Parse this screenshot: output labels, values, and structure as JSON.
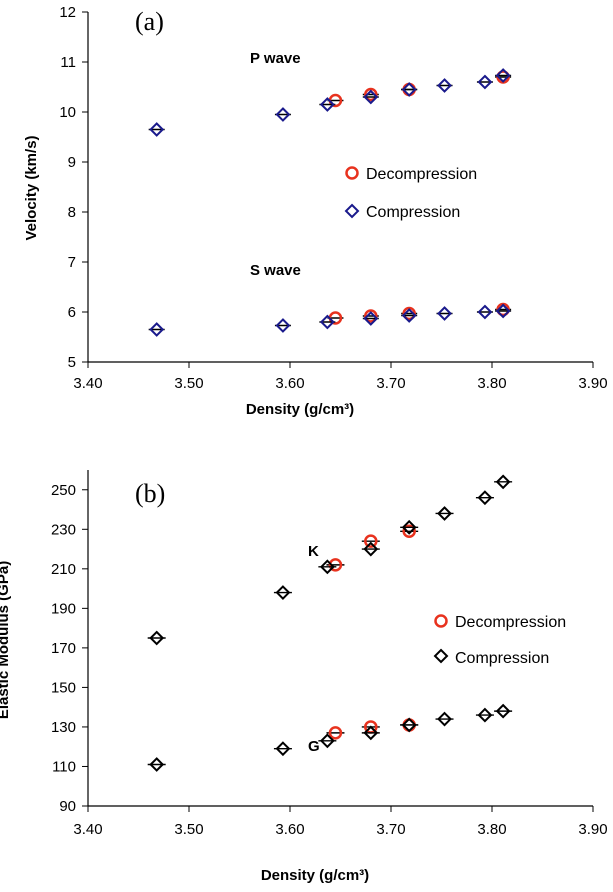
{
  "chart_data": [
    {
      "type": "scatter",
      "panel": "(a)",
      "xlabel": "Density (g/cm³)",
      "ylabel": "Velocity (km/s)",
      "xlim": [
        3.4,
        3.9
      ],
      "ylim": [
        5,
        12
      ],
      "x_ticks": [
        "3.40",
        "3.50",
        "3.60",
        "3.70",
        "3.80",
        "3.90"
      ],
      "y_ticks": [
        "5",
        "6",
        "7",
        "8",
        "9",
        "10",
        "11",
        "12"
      ],
      "grid": false,
      "legend_position": "right-middle",
      "annotations": [
        {
          "text": "P wave",
          "x": 3.675,
          "y": 10.95
        },
        {
          "text": "S wave",
          "x": 3.675,
          "y": 7.0
        }
      ],
      "series": [
        {
          "name": "Decompression",
          "marker": "circle",
          "color": "#e8321e",
          "x": [
            3.645,
            3.68,
            3.718,
            3.811
          ],
          "y": [
            10.23,
            10.35,
            10.45,
            10.7
          ]
        },
        {
          "name": "Compression",
          "marker": "diamond",
          "color": "#1a1a8c",
          "x": [
            3.468,
            3.593,
            3.637,
            3.68,
            3.718,
            3.753,
            3.793,
            3.811
          ],
          "y": [
            9.65,
            9.95,
            10.15,
            10.3,
            10.45,
            10.53,
            10.6,
            10.73
          ]
        },
        {
          "name": "Decompression",
          "marker": "circle",
          "color": "#e8321e",
          "x": [
            3.645,
            3.68,
            3.718,
            3.811
          ],
          "y": [
            5.88,
            5.92,
            5.97,
            6.05
          ]
        },
        {
          "name": "Compression",
          "marker": "diamond",
          "color": "#1a1a8c",
          "x": [
            3.468,
            3.593,
            3.637,
            3.68,
            3.718,
            3.753,
            3.793,
            3.811
          ],
          "y": [
            5.65,
            5.73,
            5.8,
            5.87,
            5.93,
            5.97,
            6.0,
            6.02
          ]
        }
      ]
    },
    {
      "type": "scatter",
      "panel": "(b)",
      "xlabel": "Density (g/cm³)",
      "ylabel": "Elastic Modulus (GPa)",
      "xlim": [
        3.4,
        3.9
      ],
      "ylim": [
        90,
        260
      ],
      "x_ticks": [
        "3.40",
        "3.50",
        "3.60",
        "3.70",
        "3.80",
        "3.90"
      ],
      "y_ticks": [
        "90",
        "110",
        "130",
        "150",
        "170",
        "190",
        "210",
        "230",
        "250"
      ],
      "grid": false,
      "legend_position": "right-middle",
      "annotations": [
        {
          "text": "K",
          "x": 3.665,
          "y": 237
        },
        {
          "text": "G",
          "x": 3.665,
          "y": 137
        }
      ],
      "series": [
        {
          "name": "Decompression",
          "marker": "circle",
          "color": "#e8321e",
          "x": [
            3.645,
            3.68,
            3.718
          ],
          "y": [
            212,
            224,
            229
          ]
        },
        {
          "name": "Compression",
          "marker": "diamond",
          "color": "#000000",
          "x": [
            3.468,
            3.593,
            3.637,
            3.68,
            3.718,
            3.753,
            3.793,
            3.811
          ],
          "y": [
            175,
            198,
            211,
            220,
            231,
            238,
            246,
            254
          ]
        },
        {
          "name": "Decompression",
          "marker": "circle",
          "color": "#e8321e",
          "x": [
            3.645,
            3.68,
            3.718
          ],
          "y": [
            127,
            130,
            131
          ]
        },
        {
          "name": "Compression",
          "marker": "diamond",
          "color": "#000000",
          "x": [
            3.468,
            3.593,
            3.637,
            3.68,
            3.718,
            3.753,
            3.793,
            3.811
          ],
          "y": [
            111,
            119,
            123,
            127,
            131,
            134,
            136,
            138
          ]
        }
      ]
    }
  ],
  "legend": {
    "decompression": "Decompression",
    "compression": "Compression"
  }
}
